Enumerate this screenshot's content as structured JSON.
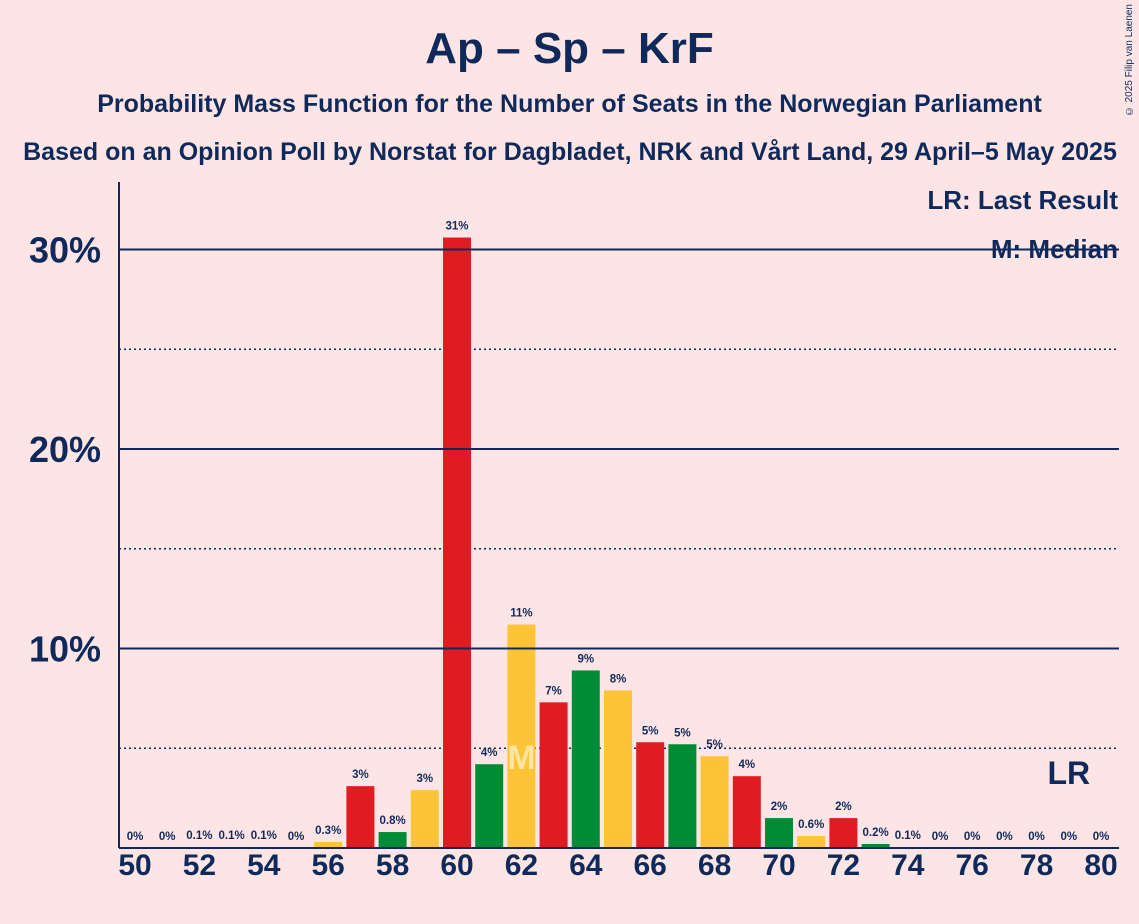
{
  "title": "Ap – Sp – KrF",
  "subtitle": "Probability Mass Function for the Number of Seats in the Norwegian Parliament",
  "subtitle2": "Based on an Opinion Poll by Norstat for Dagbladet, NRK and Vårt Land, 29 April–5 May 2025",
  "copyright": "© 2025 Filip van Laenen",
  "legend": {
    "lr": "LR: Last Result",
    "median": "M: Median"
  },
  "colors": {
    "red": "#e01b22",
    "green": "#008c35",
    "yellow": "#fdc536",
    "axis": "#0f2a5a",
    "background": "#fde5e6"
  },
  "chart_data": {
    "type": "bar",
    "x": [
      50,
      51,
      52,
      53,
      54,
      55,
      56,
      57,
      58,
      59,
      60,
      61,
      62,
      63,
      64,
      65,
      66,
      67,
      68,
      69,
      70,
      71,
      72,
      73,
      74,
      75,
      76,
      77,
      78,
      79,
      80
    ],
    "values": [
      0,
      0,
      0.05,
      0.05,
      0.05,
      0,
      0.3,
      3.1,
      0.8,
      2.9,
      30.6,
      4.2,
      11.2,
      7.3,
      8.9,
      7.9,
      5.3,
      5.2,
      4.6,
      3.6,
      1.5,
      0.6,
      1.5,
      0.2,
      0.05,
      0,
      0,
      0,
      0,
      0,
      0
    ],
    "labels": [
      "0%",
      "0%",
      "0.1%",
      "0.1%",
      "0.1%",
      "0%",
      "0.3%",
      "3%",
      "0.8%",
      "3%",
      "31%",
      "4%",
      "11%",
      "7%",
      "9%",
      "8%",
      "5%",
      "5%",
      "5%",
      "4%",
      "2%",
      "0.6%",
      "2%",
      "0.2%",
      "0.1%",
      "0%",
      "0%",
      "0%",
      "0%",
      "0%",
      "0%"
    ],
    "bar_colors": [
      "green",
      "yellow",
      "red",
      "green",
      "yellow",
      "red",
      "yellow",
      "red",
      "green",
      "yellow",
      "red",
      "green",
      "yellow",
      "red",
      "green",
      "yellow",
      "red",
      "green",
      "yellow",
      "red",
      "green",
      "yellow",
      "red",
      "green",
      "yellow",
      "red",
      "green",
      "yellow",
      "red",
      "green",
      "yellow"
    ],
    "x_ticks": [
      50,
      52,
      54,
      56,
      58,
      60,
      62,
      64,
      66,
      68,
      70,
      72,
      74,
      76,
      78,
      80
    ],
    "y_ticks": [
      {
        "value": 10,
        "label": "10%"
      },
      {
        "value": 20,
        "label": "20%"
      },
      {
        "value": 30,
        "label": "30%"
      }
    ],
    "ylim": [
      0,
      33.3
    ],
    "median": 62,
    "median_label": "M",
    "last_result": 79,
    "last_result_label": "LR"
  }
}
